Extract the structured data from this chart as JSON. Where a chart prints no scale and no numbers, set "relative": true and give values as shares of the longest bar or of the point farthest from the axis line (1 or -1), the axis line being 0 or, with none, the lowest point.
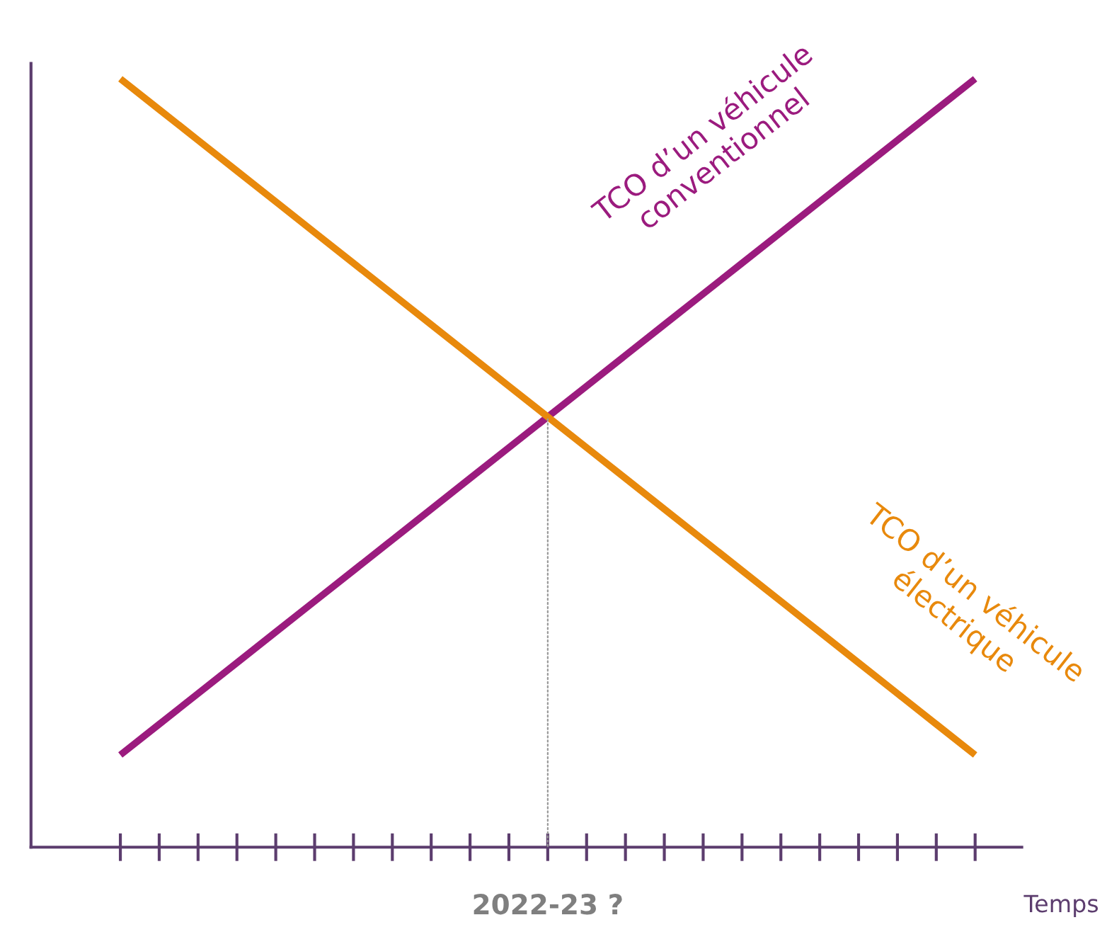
{
  "chart_data": {
    "type": "line",
    "relative": true,
    "xlabel": "Temps",
    "grid": false,
    "legend": false,
    "marker": "none",
    "line_style": "solid",
    "categories": [
      null,
      null,
      null,
      null,
      null,
      null,
      null,
      null,
      null,
      null,
      null,
      null,
      null,
      null,
      null,
      null,
      null,
      null,
      null,
      null,
      null,
      null,
      null
    ],
    "series": [
      {
        "name": "TCO d’un véhicule\nconventionnel",
        "color": "#9b1b7e",
        "values": [
          0.12,
          0.16,
          0.2,
          0.24,
          0.28,
          0.32,
          0.36,
          0.4,
          0.44,
          0.48,
          0.52,
          0.56,
          0.6,
          0.64,
          0.68,
          0.72,
          0.76,
          0.8,
          0.84,
          0.88,
          0.92,
          0.96,
          1.0
        ]
      },
      {
        "name": "TCO d’un véhicule\nélectrique",
        "color": "#e8890c",
        "values": [
          1.0,
          0.96,
          0.92,
          0.88,
          0.84,
          0.8,
          0.76,
          0.72,
          0.68,
          0.64,
          0.6,
          0.56,
          0.52,
          0.48,
          0.44,
          0.4,
          0.36,
          0.32,
          0.28,
          0.24,
          0.2,
          0.16,
          0.12
        ]
      }
    ],
    "annotations": [
      "2022-23 ?"
    ]
  }
}
